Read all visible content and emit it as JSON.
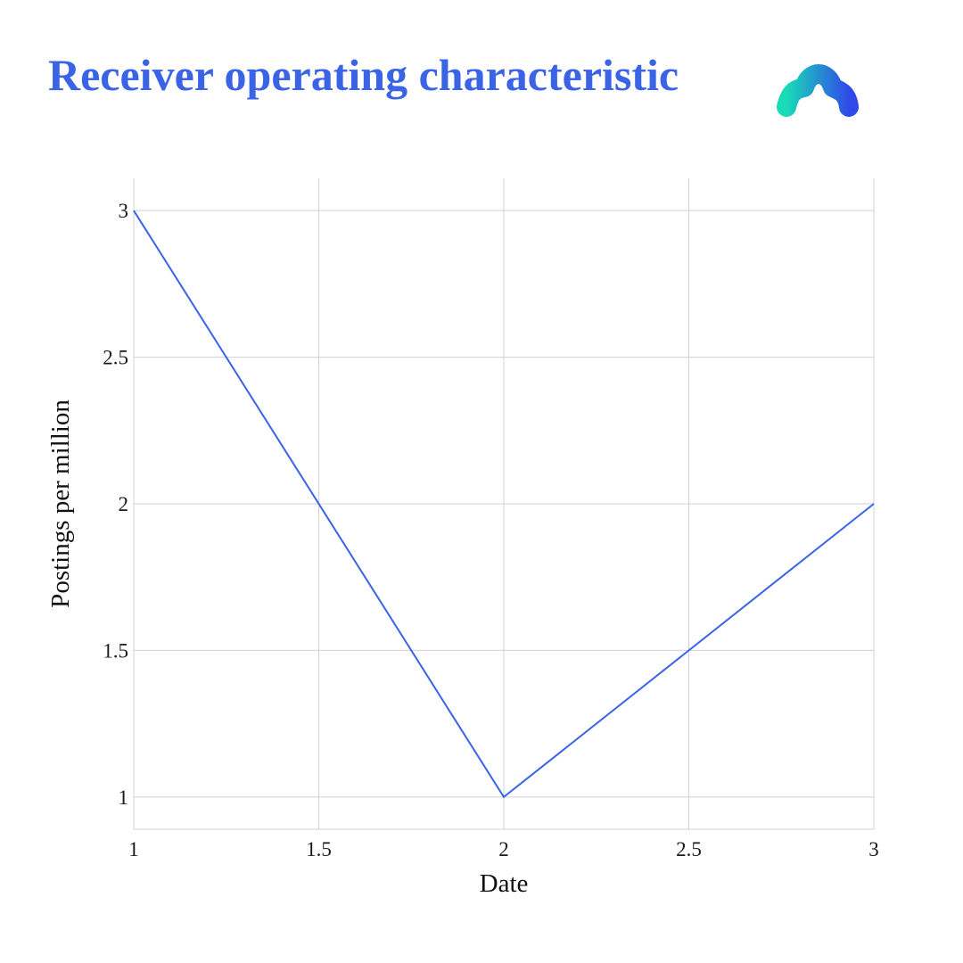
{
  "header": {
    "title": "Receiver operating characteristic",
    "title_color": "#3a63e6",
    "logo": "brand-logo-icon"
  },
  "colors": {
    "line": "#3a63e6",
    "grid": "#d0d0d0",
    "logo_gradient_start": "#19dbb8",
    "logo_gradient_end": "#2f4ae8"
  },
  "chart_data": {
    "type": "line",
    "title": "Receiver operating characteristic",
    "xlabel": "Date",
    "ylabel": "Postings per million",
    "xlim": [
      1,
      3
    ],
    "ylim": [
      0.89,
      3.11
    ],
    "xticks": [
      1,
      1.5,
      2,
      2.5,
      3
    ],
    "xtick_labels": [
      "1",
      "1.5",
      "2",
      "2.5",
      "3"
    ],
    "yticks": [
      1,
      1.5,
      2,
      2.5,
      3
    ],
    "ytick_labels": [
      "1",
      "1.5",
      "2",
      "2.5",
      "3"
    ],
    "grid": true,
    "legend": "none",
    "series": [
      {
        "x": [
          1,
          2,
          3
        ],
        "y": [
          3,
          1,
          2
        ]
      }
    ]
  }
}
